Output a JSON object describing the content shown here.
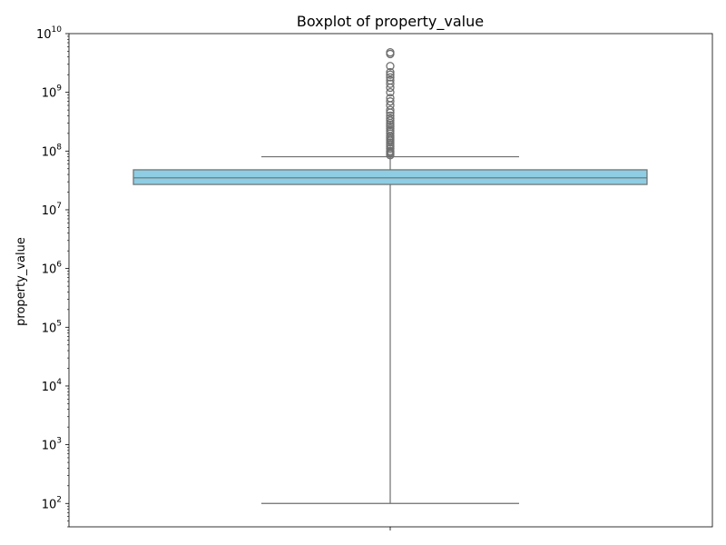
{
  "chart_data": {
    "type": "box",
    "title": "Boxplot of property_value",
    "xlabel": "",
    "ylabel": "property_value",
    "yscale": "log",
    "ylim": [
      40,
      10000000000
    ],
    "yticks": [
      {
        "value": 100,
        "base": "10",
        "exp": "2"
      },
      {
        "value": 1000,
        "base": "10",
        "exp": "3"
      },
      {
        "value": 10000,
        "base": "10",
        "exp": "4"
      },
      {
        "value": 100000,
        "base": "10",
        "exp": "5"
      },
      {
        "value": 1000000,
        "base": "10",
        "exp": "6"
      },
      {
        "value": 10000000,
        "base": "10",
        "exp": "7"
      },
      {
        "value": 100000000,
        "base": "10",
        "exp": "8"
      },
      {
        "value": 1000000000,
        "base": "10",
        "exp": "9"
      },
      {
        "value": 10000000000,
        "base": "10",
        "exp": "10"
      }
    ],
    "box": {
      "whisker_low": 100,
      "q1": 27000000,
      "median": 35000000,
      "q3": 48000000,
      "whisker_high": 80000000
    },
    "outliers": [
      85000000,
      90000000,
      95000000,
      100000000,
      110000000,
      120000000,
      130000000,
      140000000,
      150000000,
      160000000,
      170000000,
      180000000,
      200000000,
      220000000,
      240000000,
      260000000,
      280000000,
      300000000,
      330000000,
      360000000,
      400000000,
      450000000,
      500000000,
      600000000,
      700000000,
      800000000,
      1000000000,
      1200000000,
      1400000000,
      1600000000,
      1800000000,
      2000000000,
      2200000000,
      2800000000,
      4500000000,
      4800000000
    ],
    "colors": {
      "box_fill": "#8ecde3",
      "line": "#6e6e6e",
      "axes": "#000000"
    },
    "grid": false
  }
}
